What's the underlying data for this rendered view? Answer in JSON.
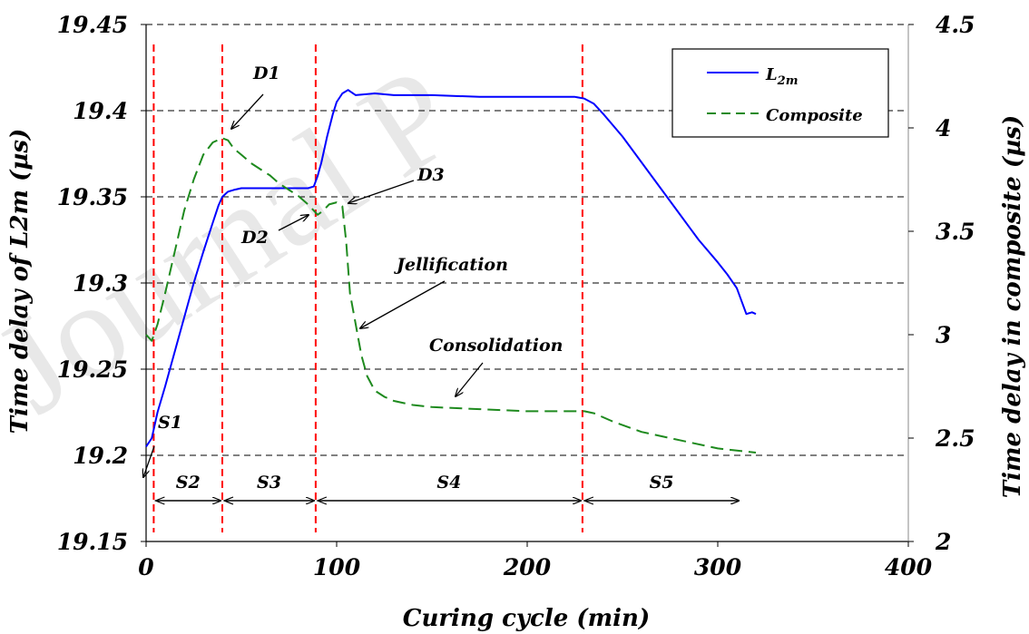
{
  "colors": {
    "l2m": "#0000ff",
    "composite": "#1e8a1e",
    "stage_lines": "#ff0000",
    "gridlines": "#000000"
  },
  "chart_data": {
    "type": "line",
    "xlabel": "Curing cycle (min)",
    "ylabel_left": "Time delay of L2m (µs)",
    "ylabel_right": "Time delay in composite (µs)",
    "xlim": [
      0,
      400
    ],
    "ylim_left": [
      19.15,
      19.45
    ],
    "ylim_right": [
      2,
      4.5
    ],
    "xticks": [
      "0",
      "100",
      "200",
      "300",
      "400"
    ],
    "yticks_left": [
      "19.15",
      "19.2",
      "19.25",
      "19.3",
      "19.35",
      "19.4",
      "19.45"
    ],
    "yticks_right": [
      "2",
      "2.5",
      "3",
      "3.5",
      "4",
      "4.5"
    ],
    "grid": "horizontal dashed",
    "legend_position": "top-right",
    "legend": [
      {
        "label": "L",
        "sub": "2m",
        "style": "solid",
        "color": "#0000ff"
      },
      {
        "label": "Composite",
        "sub": "",
        "style": "dashed",
        "color": "#1e8a1e"
      }
    ],
    "series": [
      {
        "name": "L2m",
        "axis": "left",
        "x": [
          0,
          3,
          6,
          10,
          15,
          20,
          25,
          30,
          35,
          38,
          40,
          43,
          46,
          50,
          55,
          60,
          65,
          70,
          75,
          80,
          85,
          88,
          90,
          92,
          95,
          98,
          100,
          103,
          106,
          110,
          120,
          130,
          150,
          175,
          200,
          225,
          230,
          235,
          240,
          250,
          260,
          270,
          280,
          290,
          300,
          305,
          310,
          313,
          315,
          318,
          320
        ],
        "y": [
          19.205,
          19.21,
          19.225,
          19.24,
          19.26,
          19.28,
          19.3,
          19.318,
          19.335,
          19.345,
          19.35,
          19.353,
          19.354,
          19.355,
          19.355,
          19.355,
          19.355,
          19.355,
          19.355,
          19.355,
          19.355,
          19.356,
          19.362,
          19.37,
          19.385,
          19.398,
          19.405,
          19.41,
          19.412,
          19.409,
          19.41,
          19.409,
          19.409,
          19.408,
          19.408,
          19.408,
          19.407,
          19.404,
          19.398,
          19.385,
          19.37,
          19.355,
          19.34,
          19.325,
          19.312,
          19.305,
          19.297,
          19.288,
          19.282,
          19.283,
          19.282
        ]
      },
      {
        "name": "Composite",
        "axis": "right",
        "x": [
          0,
          3,
          6,
          10,
          15,
          20,
          25,
          30,
          35,
          40,
          43,
          46,
          50,
          55,
          60,
          65,
          70,
          75,
          80,
          85,
          88,
          90,
          93,
          96,
          100,
          103,
          105,
          107,
          110,
          113,
          116,
          120,
          125,
          130,
          140,
          150,
          175,
          200,
          225,
          230,
          235,
          245,
          260,
          280,
          300,
          320
        ],
        "y": [
          3.0,
          2.97,
          3.05,
          3.2,
          3.4,
          3.6,
          3.75,
          3.87,
          3.93,
          3.95,
          3.94,
          3.9,
          3.87,
          3.83,
          3.8,
          3.77,
          3.73,
          3.7,
          3.67,
          3.63,
          3.6,
          3.58,
          3.6,
          3.63,
          3.64,
          3.62,
          3.45,
          3.2,
          3.05,
          2.9,
          2.8,
          2.73,
          2.7,
          2.68,
          2.66,
          2.65,
          2.64,
          2.63,
          2.63,
          2.63,
          2.62,
          2.58,
          2.53,
          2.49,
          2.45,
          2.43
        ]
      }
    ],
    "stage_boundaries": [
      4,
      40,
      89,
      229
    ],
    "stages": [
      {
        "label": "S2",
        "from": 4,
        "to": 40
      },
      {
        "label": "S3",
        "from": 40,
        "to": 89
      },
      {
        "label": "S4",
        "from": 89,
        "to": 229
      },
      {
        "label": "S5",
        "from": 229,
        "to": 312
      }
    ],
    "annotations": [
      {
        "text": "S1",
        "x": 4,
        "y": 19.185
      },
      {
        "text": "D1",
        "x": 46,
        "y": 19.428
      },
      {
        "text": "D2",
        "x": 60,
        "y": 19.325
      },
      {
        "text": "D3",
        "x": 125,
        "y": 19.365
      },
      {
        "text": "Jellification",
        "x": 175,
        "y": 19.307
      },
      {
        "text": "Consolidation",
        "x": 210,
        "y": 19.268
      }
    ]
  }
}
